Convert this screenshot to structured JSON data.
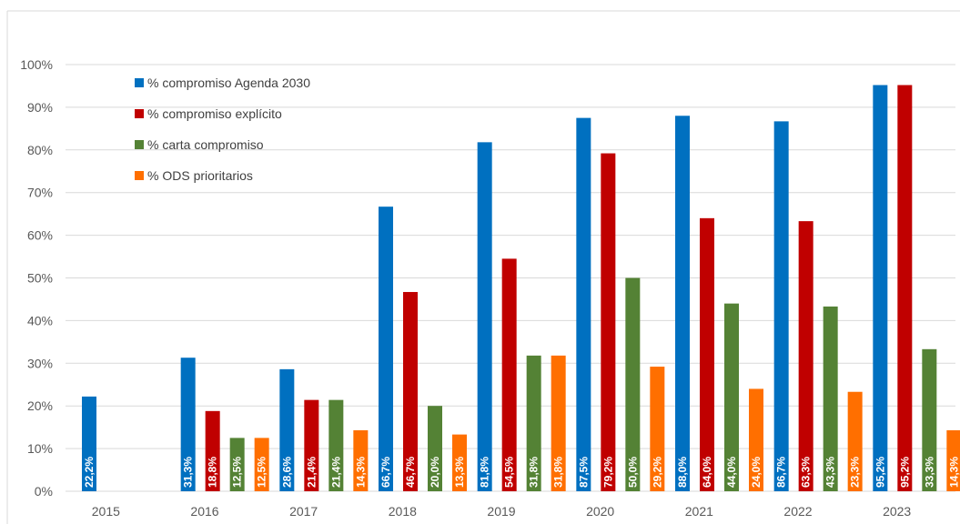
{
  "chart_data": {
    "type": "bar",
    "title": "",
    "xlabel": "",
    "ylabel": "",
    "ylim": [
      0,
      100
    ],
    "y_ticks": [
      "0%",
      "10%",
      "20%",
      "30%",
      "40%",
      "50%",
      "60%",
      "70%",
      "80%",
      "90%",
      "100%"
    ],
    "y_tick_values": [
      0,
      10,
      20,
      30,
      40,
      50,
      60,
      70,
      80,
      90,
      100
    ],
    "grid": true,
    "legend_placement": "top-left",
    "categories": [
      "2015",
      "2016",
      "2017",
      "2018",
      "2019",
      "2020",
      "2021",
      "2022",
      "2023"
    ],
    "series": [
      {
        "name": "% compromiso Agenda 2030",
        "color": "#0070C0",
        "values": [
          22.2,
          31.3,
          28.6,
          66.7,
          81.8,
          87.5,
          88.0,
          86.7,
          95.2
        ],
        "labels": [
          "22,2%",
          "31,3%",
          "28,6%",
          "66,7%",
          "81,8%",
          "87,5%",
          "88,0%",
          "86,7%",
          "95,2%"
        ]
      },
      {
        "name": "% compromiso explícito",
        "color": "#C00000",
        "values": [
          null,
          18.8,
          21.4,
          46.7,
          54.5,
          79.2,
          64.0,
          63.3,
          95.2
        ],
        "labels": [
          "",
          "18,8%",
          "21,4%",
          "46,7%",
          "54,5%",
          "79,2%",
          "64,0%",
          "63,3%",
          "95,2%"
        ]
      },
      {
        "name": "% carta compromiso",
        "color": "#548235",
        "values": [
          null,
          12.5,
          21.4,
          20.0,
          31.8,
          50.0,
          44.0,
          43.3,
          33.3
        ],
        "labels": [
          "",
          "12,5%",
          "21,4%",
          "20,0%",
          "31,8%",
          "50,0%",
          "44,0%",
          "43,3%",
          "33,3%"
        ]
      },
      {
        "name": "% ODS prioritarios",
        "color": "#FF6F00",
        "values": [
          null,
          12.5,
          14.3,
          13.3,
          31.8,
          29.2,
          24.0,
          23.3,
          14.3
        ],
        "labels": [
          "",
          "12,5%",
          "14,3%",
          "13,3%",
          "31,8%",
          "29,2%",
          "24,0%",
          "23,3%",
          "14,3%"
        ]
      }
    ]
  }
}
